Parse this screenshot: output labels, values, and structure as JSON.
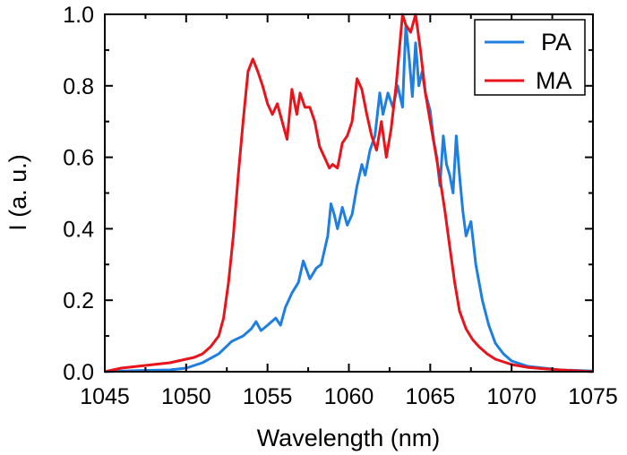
{
  "chart_data": {
    "type": "line",
    "xlabel": "Wavelength (nm)",
    "ylabel": "I (a. u.)",
    "xlim": [
      1045,
      1075
    ],
    "ylim": [
      0.0,
      1.0
    ],
    "xticks": [
      1045,
      1050,
      1055,
      1060,
      1065,
      1070,
      1075
    ],
    "xtick_labels": [
      "1045",
      "1050",
      "1055",
      "1060",
      "1065",
      "1070",
      "1075"
    ],
    "yticks": [
      0.0,
      0.2,
      0.4,
      0.6,
      0.8,
      1.0
    ],
    "ytick_labels": [
      "0.0",
      "0.2",
      "0.4",
      "0.6",
      "0.8",
      "1.0"
    ],
    "grid": false,
    "legend_position": "top-right",
    "series": [
      {
        "name": "PA",
        "color": "#1f7fe0",
        "points": [
          [
            1045,
            0.0
          ],
          [
            1047,
            0.003
          ],
          [
            1049,
            0.005
          ],
          [
            1050,
            0.01
          ],
          [
            1051,
            0.025
          ],
          [
            1052,
            0.05
          ],
          [
            1052.8,
            0.085
          ],
          [
            1053.5,
            0.1
          ],
          [
            1054.0,
            0.12
          ],
          [
            1054.3,
            0.14
          ],
          [
            1054.6,
            0.115
          ],
          [
            1055.0,
            0.13
          ],
          [
            1055.5,
            0.15
          ],
          [
            1055.8,
            0.13
          ],
          [
            1056.1,
            0.18
          ],
          [
            1056.5,
            0.22
          ],
          [
            1056.9,
            0.25
          ],
          [
            1057.2,
            0.31
          ],
          [
            1057.6,
            0.26
          ],
          [
            1058.0,
            0.29
          ],
          [
            1058.3,
            0.3
          ],
          [
            1058.7,
            0.38
          ],
          [
            1058.9,
            0.47
          ],
          [
            1059.1,
            0.44
          ],
          [
            1059.3,
            0.4
          ],
          [
            1059.6,
            0.46
          ],
          [
            1059.9,
            0.41
          ],
          [
            1060.2,
            0.44
          ],
          [
            1060.5,
            0.52
          ],
          [
            1060.8,
            0.58
          ],
          [
            1061.0,
            0.55
          ],
          [
            1061.3,
            0.62
          ],
          [
            1061.6,
            0.66
          ],
          [
            1061.9,
            0.78
          ],
          [
            1062.1,
            0.72
          ],
          [
            1062.4,
            0.78
          ],
          [
            1062.7,
            0.74
          ],
          [
            1063.0,
            0.8
          ],
          [
            1063.3,
            0.74
          ],
          [
            1063.5,
            0.97
          ],
          [
            1063.7,
            0.88
          ],
          [
            1063.9,
            0.77
          ],
          [
            1064.1,
            0.92
          ],
          [
            1064.3,
            0.8
          ],
          [
            1064.5,
            0.84
          ],
          [
            1064.7,
            0.78
          ],
          [
            1065.0,
            0.73
          ],
          [
            1065.2,
            0.65
          ],
          [
            1065.4,
            0.6
          ],
          [
            1065.6,
            0.52
          ],
          [
            1065.8,
            0.66
          ],
          [
            1066.0,
            0.58
          ],
          [
            1066.2,
            0.55
          ],
          [
            1066.4,
            0.5
          ],
          [
            1066.6,
            0.66
          ],
          [
            1066.8,
            0.55
          ],
          [
            1067.0,
            0.45
          ],
          [
            1067.2,
            0.38
          ],
          [
            1067.5,
            0.42
          ],
          [
            1067.8,
            0.3
          ],
          [
            1068.2,
            0.2
          ],
          [
            1068.6,
            0.13
          ],
          [
            1069.0,
            0.08
          ],
          [
            1069.5,
            0.05
          ],
          [
            1070.0,
            0.03
          ],
          [
            1071.0,
            0.015
          ],
          [
            1072.0,
            0.01
          ],
          [
            1073.0,
            0.005
          ],
          [
            1075,
            0.002
          ]
        ]
      },
      {
        "name": "MA",
        "color": "#e8141c",
        "points": [
          [
            1045,
            0.0
          ],
          [
            1046.0,
            0.01
          ],
          [
            1047.0,
            0.015
          ],
          [
            1048.0,
            0.02
          ],
          [
            1049.0,
            0.025
          ],
          [
            1050.0,
            0.035
          ],
          [
            1050.5,
            0.04
          ],
          [
            1051.0,
            0.05
          ],
          [
            1051.5,
            0.07
          ],
          [
            1052.0,
            0.1
          ],
          [
            1052.3,
            0.15
          ],
          [
            1052.6,
            0.25
          ],
          [
            1052.9,
            0.38
          ],
          [
            1053.2,
            0.55
          ],
          [
            1053.5,
            0.7
          ],
          [
            1053.8,
            0.84
          ],
          [
            1054.1,
            0.875
          ],
          [
            1054.4,
            0.84
          ],
          [
            1054.7,
            0.8
          ],
          [
            1055.0,
            0.75
          ],
          [
            1055.3,
            0.72
          ],
          [
            1055.6,
            0.75
          ],
          [
            1055.9,
            0.7
          ],
          [
            1056.2,
            0.65
          ],
          [
            1056.5,
            0.79
          ],
          [
            1056.8,
            0.72
          ],
          [
            1057.0,
            0.78
          ],
          [
            1057.3,
            0.74
          ],
          [
            1057.6,
            0.74
          ],
          [
            1057.9,
            0.7
          ],
          [
            1058.2,
            0.63
          ],
          [
            1058.5,
            0.6
          ],
          [
            1058.8,
            0.57
          ],
          [
            1059.0,
            0.58
          ],
          [
            1059.3,
            0.57
          ],
          [
            1059.6,
            0.64
          ],
          [
            1059.9,
            0.66
          ],
          [
            1060.2,
            0.7
          ],
          [
            1060.5,
            0.82
          ],
          [
            1060.8,
            0.79
          ],
          [
            1061.1,
            0.72
          ],
          [
            1061.4,
            0.66
          ],
          [
            1061.7,
            0.62
          ],
          [
            1062.0,
            0.7
          ],
          [
            1062.3,
            0.6
          ],
          [
            1062.6,
            0.68
          ],
          [
            1062.9,
            0.8
          ],
          [
            1063.1,
            0.9
          ],
          [
            1063.3,
            1.0
          ],
          [
            1063.5,
            0.97
          ],
          [
            1063.8,
            0.95
          ],
          [
            1064.1,
            1.0
          ],
          [
            1064.4,
            0.9
          ],
          [
            1064.7,
            0.78
          ],
          [
            1065.0,
            0.7
          ],
          [
            1065.3,
            0.62
          ],
          [
            1065.6,
            0.54
          ],
          [
            1065.9,
            0.45
          ],
          [
            1066.2,
            0.35
          ],
          [
            1066.5,
            0.25
          ],
          [
            1066.8,
            0.17
          ],
          [
            1067.2,
            0.12
          ],
          [
            1067.6,
            0.09
          ],
          [
            1068.0,
            0.07
          ],
          [
            1068.5,
            0.05
          ],
          [
            1069.0,
            0.035
          ],
          [
            1070.0,
            0.02
          ],
          [
            1071.0,
            0.012
          ],
          [
            1072.0,
            0.008
          ],
          [
            1073.0,
            0.005
          ],
          [
            1075,
            0.0
          ]
        ]
      }
    ]
  }
}
